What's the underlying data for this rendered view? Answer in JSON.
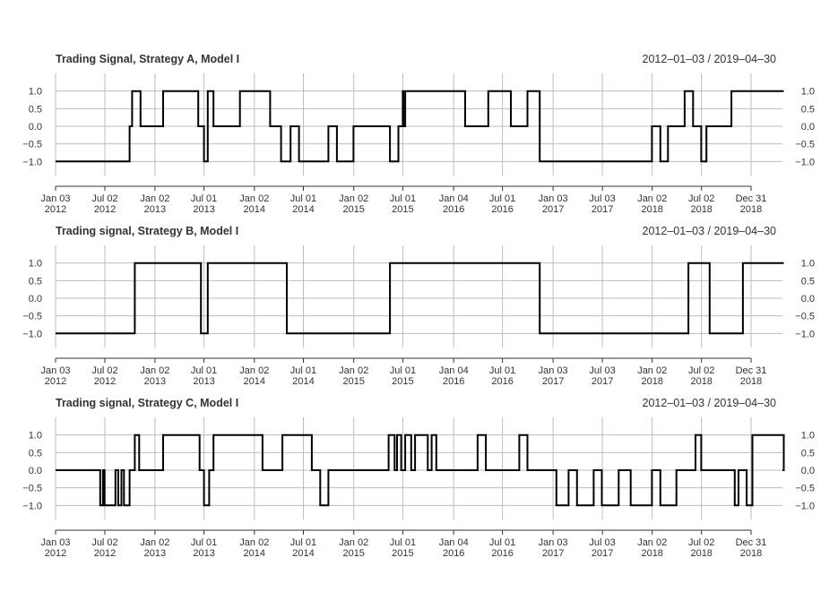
{
  "chart_data": [
    {
      "type": "line",
      "title": "Trading Signal, Strategy A, Model I",
      "date_range": "2012–01–03 / 2019–04–30",
      "x_ticks": [
        {
          "month": "Jan 03",
          "year": "2012",
          "date": "2012-01-03"
        },
        {
          "month": "Jul 02",
          "year": "2012",
          "date": "2012-07-02"
        },
        {
          "month": "Jan 02",
          "year": "2013",
          "date": "2013-01-02"
        },
        {
          "month": "Jul 01",
          "year": "2013",
          "date": "2013-07-01"
        },
        {
          "month": "Jan 02",
          "year": "2014",
          "date": "2014-01-02"
        },
        {
          "month": "Jul 01",
          "year": "2014",
          "date": "2014-07-01"
        },
        {
          "month": "Jan 02",
          "year": "2015",
          "date": "2015-01-02"
        },
        {
          "month": "Jul 01",
          "year": "2015",
          "date": "2015-07-01"
        },
        {
          "month": "Jan 04",
          "year": "2016",
          "date": "2016-01-04"
        },
        {
          "month": "Jul 01",
          "year": "2016",
          "date": "2016-07-01"
        },
        {
          "month": "Jan 03",
          "year": "2017",
          "date": "2017-01-03"
        },
        {
          "month": "Jul 03",
          "year": "2017",
          "date": "2017-07-03"
        },
        {
          "month": "Jan 02",
          "year": "2018",
          "date": "2018-01-02"
        },
        {
          "month": "Jul 02",
          "year": "2018",
          "date": "2018-07-02"
        },
        {
          "month": "Dec 31",
          "year": "2018",
          "date": "2018-12-31"
        }
      ],
      "y_ticks": [
        "1.0",
        "0.5",
        "0.0",
        "−0.5",
        "−1.0"
      ],
      "y_tick_values": [
        1.0,
        0.5,
        0.0,
        -0.5,
        -1.0
      ],
      "ylim": [
        -1.5,
        1.5
      ],
      "xlim": [
        "2012-01-03",
        "2019-04-30"
      ],
      "x": [
        "2012-01-03",
        "2012-10-01",
        "2012-10-10",
        "2012-11-10",
        "2013-02-01",
        "2013-06-10",
        "2013-07-01",
        "2013-07-15",
        "2013-08-05",
        "2013-11-10",
        "2014-03-01",
        "2014-04-10",
        "2014-05-15",
        "2014-06-15",
        "2014-10-01",
        "2014-11-01",
        "2015-01-01",
        "2015-05-15",
        "2015-06-15",
        "2015-07-01",
        "2015-07-03",
        "2015-07-10",
        "2016-02-15",
        "2016-05-10",
        "2016-08-01",
        "2016-10-01",
        "2016-11-15",
        "2018-01-01",
        "2018-02-01",
        "2018-03-01",
        "2018-05-01",
        "2018-06-01",
        "2018-07-01",
        "2018-07-20",
        "2018-10-20",
        "2019-04-30"
      ],
      "values": [
        -1.0,
        0.0,
        1.0,
        0.0,
        1.0,
        0.0,
        -1.0,
        1.0,
        0.0,
        1.0,
        0.0,
        -1.0,
        0.0,
        -1.0,
        0.0,
        -1.0,
        0.0,
        -1.0,
        0.0,
        1.0,
        0.0,
        1.0,
        0.0,
        1.0,
        0.0,
        1.0,
        -1.0,
        0.0,
        -1.0,
        0.0,
        1.0,
        0.0,
        -1.0,
        0.0,
        1.0,
        1.0
      ]
    },
    {
      "type": "line",
      "title": "Trading signal, Strategy B, Model I",
      "date_range": "2012–01–03 / 2019–04–30",
      "x_ticks": [
        {
          "month": "Jan 03",
          "year": "2012",
          "date": "2012-01-03"
        },
        {
          "month": "Jul 02",
          "year": "2012",
          "date": "2012-07-02"
        },
        {
          "month": "Jan 02",
          "year": "2013",
          "date": "2013-01-02"
        },
        {
          "month": "Jul 01",
          "year": "2013",
          "date": "2013-07-01"
        },
        {
          "month": "Jan 02",
          "year": "2014",
          "date": "2014-01-02"
        },
        {
          "month": "Jul 01",
          "year": "2014",
          "date": "2014-07-01"
        },
        {
          "month": "Jan 02",
          "year": "2015",
          "date": "2015-01-02"
        },
        {
          "month": "Jul 01",
          "year": "2015",
          "date": "2015-07-01"
        },
        {
          "month": "Jan 04",
          "year": "2016",
          "date": "2016-01-04"
        },
        {
          "month": "Jul 01",
          "year": "2016",
          "date": "2016-07-01"
        },
        {
          "month": "Jan 03",
          "year": "2017",
          "date": "2017-01-03"
        },
        {
          "month": "Jul 03",
          "year": "2017",
          "date": "2017-07-03"
        },
        {
          "month": "Jan 02",
          "year": "2018",
          "date": "2018-01-02"
        },
        {
          "month": "Jul 02",
          "year": "2018",
          "date": "2018-07-02"
        },
        {
          "month": "Dec 31",
          "year": "2018",
          "date": "2018-12-31"
        }
      ],
      "y_ticks": [
        "1.0",
        "0.5",
        "0.0",
        "−0.5",
        "−1.0"
      ],
      "y_tick_values": [
        1.0,
        0.5,
        0.0,
        -0.5,
        -1.0
      ],
      "ylim": [
        -1.5,
        1.5
      ],
      "xlim": [
        "2012-01-03",
        "2019-04-30"
      ],
      "x": [
        "2012-01-03",
        "2012-10-20",
        "2013-06-20",
        "2013-07-15",
        "2014-05-01",
        "2015-05-15",
        "2016-11-15",
        "2018-05-15",
        "2018-08-01",
        "2018-12-01",
        "2019-04-30"
      ],
      "values": [
        -1.0,
        1.0,
        -1.0,
        1.0,
        -1.0,
        1.0,
        -1.0,
        1.0,
        -1.0,
        1.0,
        1.0
      ]
    },
    {
      "type": "line",
      "title": "Trading signal, Strategy C, Model I",
      "date_range": "2012–01–03 / 2019–04–30",
      "x_ticks": [
        {
          "month": "Jan 03",
          "year": "2012",
          "date": "2012-01-03"
        },
        {
          "month": "Jul 02",
          "year": "2012",
          "date": "2012-07-02"
        },
        {
          "month": "Jan 02",
          "year": "2013",
          "date": "2013-01-02"
        },
        {
          "month": "Jul 01",
          "year": "2013",
          "date": "2013-07-01"
        },
        {
          "month": "Jan 02",
          "year": "2014",
          "date": "2014-01-02"
        },
        {
          "month": "Jul 01",
          "year": "2014",
          "date": "2014-07-01"
        },
        {
          "month": "Jan 02",
          "year": "2015",
          "date": "2015-01-02"
        },
        {
          "month": "Jul 01",
          "year": "2015",
          "date": "2015-07-01"
        },
        {
          "month": "Jan 04",
          "year": "2016",
          "date": "2016-01-04"
        },
        {
          "month": "Jul 01",
          "year": "2016",
          "date": "2016-07-01"
        },
        {
          "month": "Jan 03",
          "year": "2017",
          "date": "2017-01-03"
        },
        {
          "month": "Jul 03",
          "year": "2017",
          "date": "2017-07-03"
        },
        {
          "month": "Jan 02",
          "year": "2018",
          "date": "2018-01-02"
        },
        {
          "month": "Jul 02",
          "year": "2018",
          "date": "2018-07-02"
        },
        {
          "month": "Dec 31",
          "year": "2018",
          "date": "2018-12-31"
        }
      ],
      "y_ticks": [
        "1.0",
        "0.5",
        "0.0",
        "−0.5",
        "−1.0"
      ],
      "y_tick_values": [
        1.0,
        0.5,
        0.0,
        -0.5,
        -1.0
      ],
      "ylim": [
        -1.5,
        1.5
      ],
      "xlim": [
        "2012-01-03",
        "2019-04-30"
      ],
      "x": [
        "2012-01-03",
        "2012-06-15",
        "2012-06-25",
        "2012-07-01",
        "2012-07-10",
        "2012-08-10",
        "2012-08-20",
        "2012-09-01",
        "2012-09-10",
        "2012-10-01",
        "2012-10-20",
        "2012-11-05",
        "2013-02-01",
        "2013-06-15",
        "2013-07-01",
        "2013-07-20",
        "2013-08-05",
        "2014-02-01",
        "2014-04-15",
        "2014-08-01",
        "2014-09-01",
        "2014-10-01",
        "2015-05-01",
        "2015-05-10",
        "2015-06-01",
        "2015-06-10",
        "2015-06-25",
        "2015-07-10",
        "2015-08-01",
        "2015-08-15",
        "2015-10-01",
        "2015-10-15",
        "2015-11-01",
        "2016-01-01",
        "2016-03-01",
        "2016-04-01",
        "2016-05-01",
        "2016-09-01",
        "2016-10-01",
        "2017-01-01",
        "2017-01-15",
        "2017-03-01",
        "2017-04-01",
        "2017-06-01",
        "2017-07-01",
        "2017-09-01",
        "2017-10-15",
        "2018-01-01",
        "2018-02-01",
        "2018-04-01",
        "2018-05-10",
        "2018-06-10",
        "2018-07-01",
        "2018-08-01",
        "2018-10-01",
        "2018-11-01",
        "2018-11-15",
        "2018-12-15",
        "2019-01-05",
        "2019-04-30"
      ],
      "values": [
        0.0,
        -1.0,
        0.0,
        -1.0,
        -1.0,
        0.0,
        -1.0,
        0.0,
        -1.0,
        0.0,
        1.0,
        0.0,
        1.0,
        0.0,
        -1.0,
        0.0,
        1.0,
        0.0,
        1.0,
        0.0,
        -1.0,
        0.0,
        0.0,
        1.0,
        0.0,
        1.0,
        0.0,
        1.0,
        0.0,
        1.0,
        0.0,
        1.0,
        0.0,
        0.0,
        0.0,
        1.0,
        0.0,
        1.0,
        0.0,
        0.0,
        -1.0,
        0.0,
        -1.0,
        0.0,
        -1.0,
        0.0,
        -1.0,
        0.0,
        -1.0,
        0.0,
        0.0,
        1.0,
        0.0,
        0.0,
        0.0,
        -1.0,
        0.0,
        -1.0,
        1.0,
        0.0
      ]
    }
  ]
}
